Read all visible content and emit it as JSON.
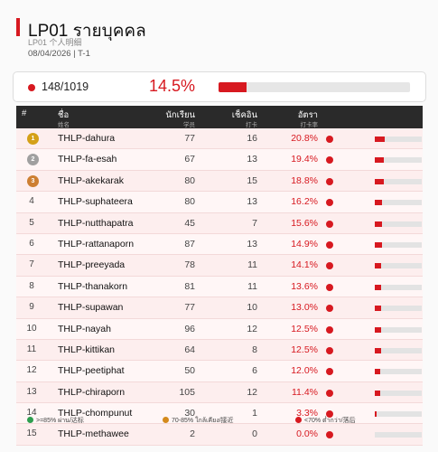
{
  "header": {
    "title": "LP01  รายบุคคล",
    "subtitle": "LP01  个人明细",
    "meta": "08/04/2026   |   T-1"
  },
  "summary": {
    "count": "148/1019",
    "percent": "14.5%",
    "fraction": 0.145
  },
  "colors": {
    "accent": "#d71920",
    "good": "#2e9e4f",
    "mid": "#d48a1c",
    "bad": "#d71920",
    "gold": "#d4a017",
    "silver": "#a0a0a0",
    "bronze": "#cd7f32"
  },
  "table": {
    "headers": {
      "rank": "#",
      "name": "ชื่อ",
      "name_sub": "姓名",
      "students": "นักเรียน",
      "students_sub": "学员",
      "checkins": "เช็คอิน",
      "checkins_sub": "打卡",
      "rate": "อัตรา",
      "rate_sub": "打卡率"
    },
    "rows": [
      {
        "rank": "1",
        "name": "THLP-dahura",
        "students": "77",
        "checkins": "16",
        "rate": "20.8%",
        "fraction": 0.208,
        "medal": "gold"
      },
      {
        "rank": "2",
        "name": "THLP-fa-esah",
        "students": "67",
        "checkins": "13",
        "rate": "19.4%",
        "fraction": 0.194,
        "medal": "silver"
      },
      {
        "rank": "3",
        "name": "THLP-akekarak",
        "students": "80",
        "checkins": "15",
        "rate": "18.8%",
        "fraction": 0.188,
        "medal": "bronze"
      },
      {
        "rank": "4",
        "name": "THLP-suphateera",
        "students": "80",
        "checkins": "13",
        "rate": "16.2%",
        "fraction": 0.162
      },
      {
        "rank": "5",
        "name": "THLP-nutthapatra",
        "students": "45",
        "checkins": "7",
        "rate": "15.6%",
        "fraction": 0.156
      },
      {
        "rank": "6",
        "name": "THLP-rattanaporn",
        "students": "87",
        "checkins": "13",
        "rate": "14.9%",
        "fraction": 0.149
      },
      {
        "rank": "7",
        "name": "THLP-preeyada",
        "students": "78",
        "checkins": "11",
        "rate": "14.1%",
        "fraction": 0.141
      },
      {
        "rank": "8",
        "name": "THLP-thanakorn",
        "students": "81",
        "checkins": "11",
        "rate": "13.6%",
        "fraction": 0.136
      },
      {
        "rank": "9",
        "name": "THLP-supawan",
        "students": "77",
        "checkins": "10",
        "rate": "13.0%",
        "fraction": 0.13
      },
      {
        "rank": "10",
        "name": "THLP-nayah",
        "students": "96",
        "checkins": "12",
        "rate": "12.5%",
        "fraction": 0.125
      },
      {
        "rank": "11",
        "name": "THLP-kittikan",
        "students": "64",
        "checkins": "8",
        "rate": "12.5%",
        "fraction": 0.125
      },
      {
        "rank": "12",
        "name": "THLP-peetiphat",
        "students": "50",
        "checkins": "6",
        "rate": "12.0%",
        "fraction": 0.12
      },
      {
        "rank": "13",
        "name": "THLP-chiraporn",
        "students": "105",
        "checkins": "12",
        "rate": "11.4%",
        "fraction": 0.114
      },
      {
        "rank": "14",
        "name": "THLP-chompunut",
        "students": "30",
        "checkins": "1",
        "rate": "3.3%",
        "fraction": 0.033
      },
      {
        "rank": "15",
        "name": "THLP-methawee",
        "students": "2",
        "checkins": "0",
        "rate": "0.0%",
        "fraction": 0.0
      }
    ]
  },
  "legend": [
    {
      "label": ">=85% ผ่าน/达标",
      "color": "#2e9e4f"
    },
    {
      "label": "70-85% ใกล้เคียง/接近",
      "color": "#d48a1c"
    },
    {
      "label": "<70% ต่ำกว่า/落后",
      "color": "#d71920"
    }
  ]
}
